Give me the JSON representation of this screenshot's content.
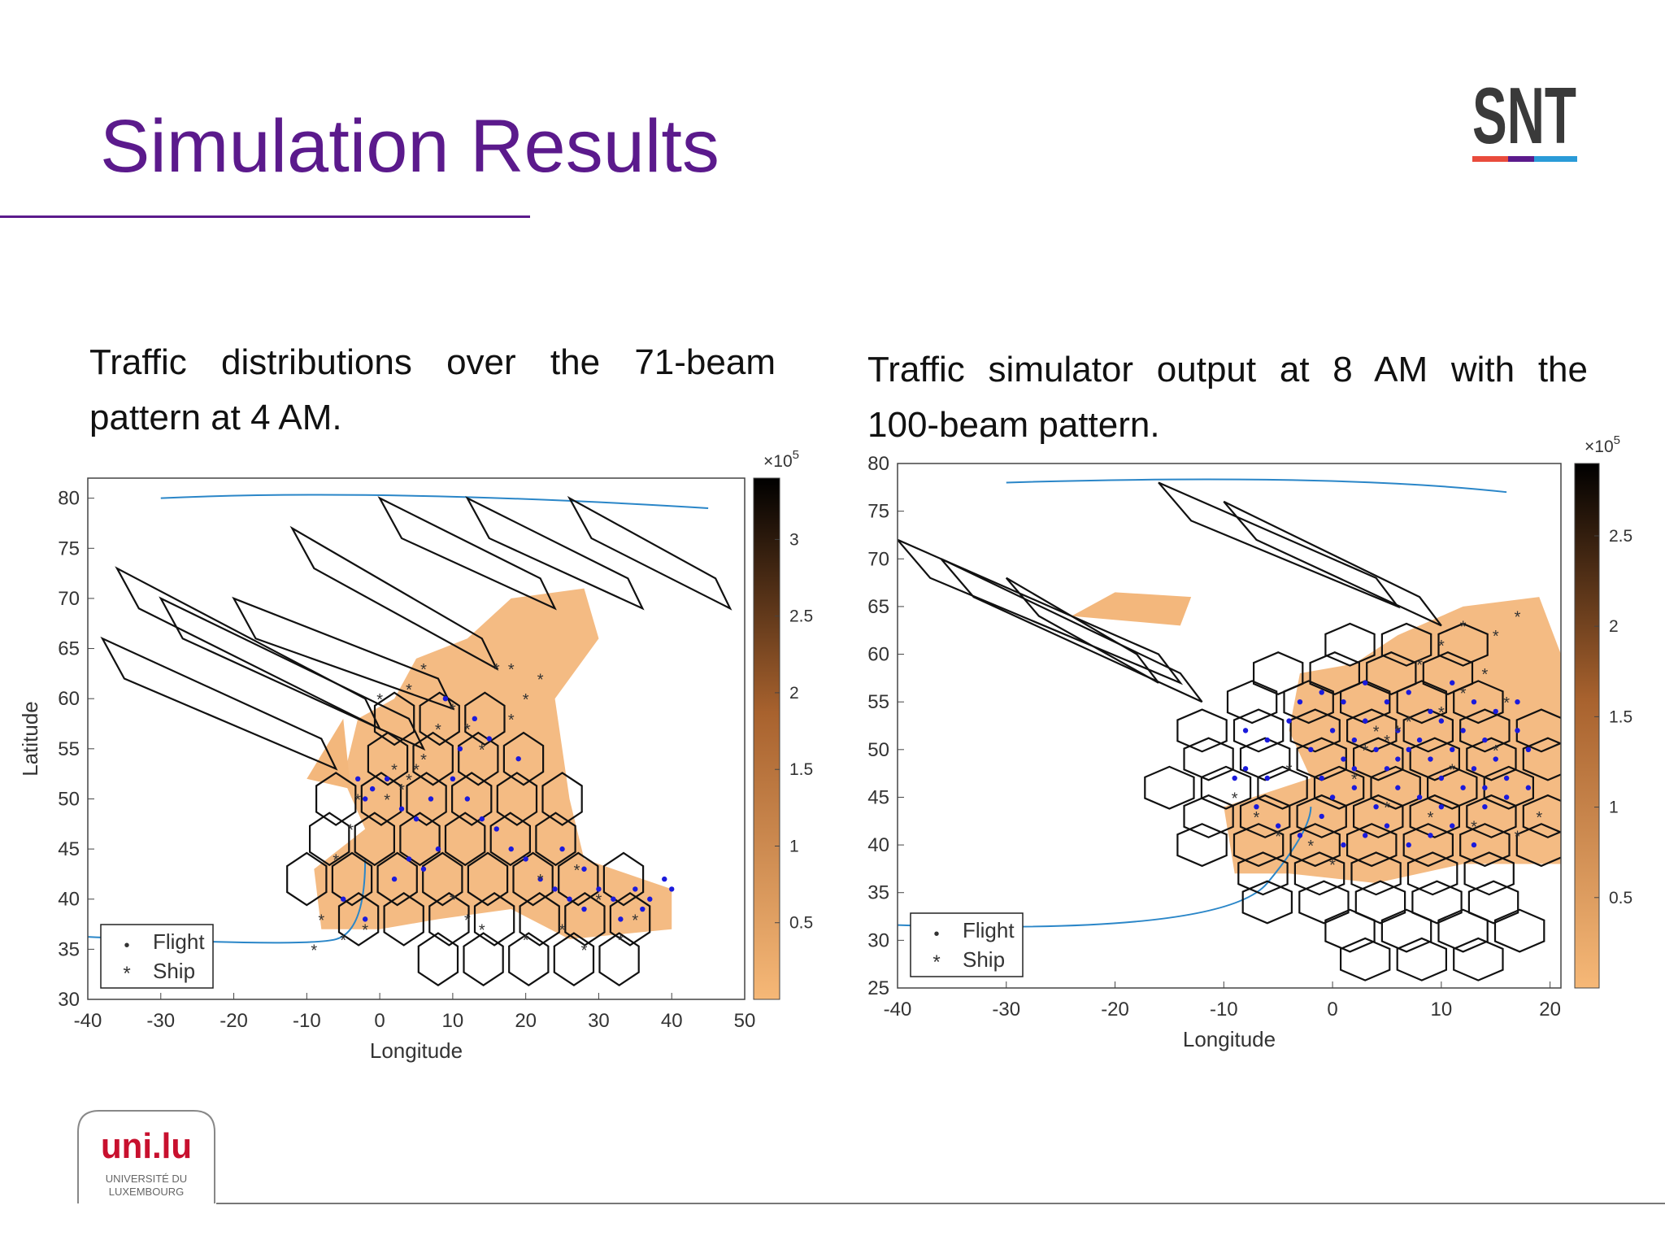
{
  "slide": {
    "title": "Simulation Results",
    "accent_color": "#5b1a8c"
  },
  "logos": {
    "snt": {
      "text": "SNT",
      "bar_colors": [
        "#e94b3c",
        "#5b1a8c",
        "#2a9bd8"
      ]
    },
    "uni": {
      "wordmark": "uni.lu",
      "line1": "UNIVERSITÉ DU",
      "line2": "LUXEMBOURG",
      "color": "#c8102e"
    }
  },
  "captions": {
    "left": {
      "line1": "Traffic distributions over the 71-beam",
      "line2": "pattern at 4 AM."
    },
    "right": {
      "line1": "Traffic simulator output at 8 AM with the",
      "line2": "100-beam pattern."
    }
  },
  "chart_data": [
    {
      "type": "scatter",
      "description_visible": "map with beam cells, traffic heat color and flight/ship markers",
      "xlabel": "Longitude",
      "ylabel": "Latitude",
      "xlim": [
        -40,
        50
      ],
      "ylim": [
        30,
        82
      ],
      "xticks": [
        -40,
        -30,
        -20,
        -10,
        0,
        10,
        20,
        30,
        40,
        50
      ],
      "yticks": [
        30,
        35,
        40,
        45,
        50,
        55,
        60,
        65,
        70,
        75,
        80
      ],
      "colorbar": {
        "ticks": [
          "0.5",
          "1",
          "1.5",
          "2",
          "2.5",
          "3"
        ],
        "range": [
          0,
          3.4
        ],
        "exponent": "×10^5",
        "colors": [
          "#f6b877",
          "#000000"
        ]
      },
      "legend": {
        "position": "bottom-left",
        "entries": [
          {
            "name": "Flight",
            "marker": "•",
            "color": "#1a1adc"
          },
          {
            "name": "Ship",
            "marker": "*",
            "color": "#e8231f"
          }
        ]
      },
      "series": [
        {
          "name": "Flight",
          "color": "#1a1adc",
          "points": [
            [
              -3,
              52
            ],
            [
              -1,
              51
            ],
            [
              1,
              52
            ],
            [
              -2,
              50
            ],
            [
              3,
              49
            ],
            [
              5,
              48
            ],
            [
              7,
              50
            ],
            [
              10,
              52
            ],
            [
              12,
              50
            ],
            [
              14,
              48
            ],
            [
              16,
              47
            ],
            [
              18,
              45
            ],
            [
              20,
              44
            ],
            [
              22,
              42
            ],
            [
              24,
              41
            ],
            [
              26,
              40
            ],
            [
              28,
              39
            ],
            [
              30,
              41
            ],
            [
              32,
              40
            ],
            [
              35,
              41
            ],
            [
              37,
              40
            ],
            [
              39,
              42
            ],
            [
              40,
              41
            ],
            [
              8,
              45
            ],
            [
              6,
              43
            ],
            [
              4,
              44
            ],
            [
              11,
              55
            ],
            [
              15,
              56
            ],
            [
              19,
              54
            ],
            [
              13,
              58
            ],
            [
              9,
              60
            ],
            [
              -5,
              40
            ],
            [
              -2,
              38
            ],
            [
              2,
              42
            ],
            [
              25,
              45
            ],
            [
              28,
              43
            ],
            [
              33,
              38
            ],
            [
              36,
              39
            ]
          ]
        },
        {
          "name": "Ship",
          "color": "#e8231f",
          "points": [
            [
              5,
              53
            ],
            [
              4,
              52
            ],
            [
              6,
              54
            ],
            [
              3,
              51
            ],
            [
              2,
              53
            ],
            [
              8,
              57
            ],
            [
              10,
              59
            ],
            [
              12,
              57
            ],
            [
              14,
              55
            ],
            [
              18,
              58
            ],
            [
              20,
              60
            ],
            [
              22,
              62
            ],
            [
              4,
              61
            ],
            [
              6,
              63
            ],
            [
              0,
              60
            ],
            [
              -4,
              47
            ],
            [
              -6,
              44
            ],
            [
              -8,
              38
            ],
            [
              -5,
              36
            ],
            [
              -9,
              35
            ],
            [
              -2,
              37
            ],
            [
              10,
              40
            ],
            [
              12,
              38
            ],
            [
              14,
              37
            ],
            [
              20,
              36
            ],
            [
              25,
              37
            ],
            [
              28,
              35
            ],
            [
              30,
              40
            ],
            [
              33,
              36
            ],
            [
              35,
              38
            ],
            [
              27,
              43
            ],
            [
              22,
              42
            ],
            [
              -3,
              50
            ],
            [
              1,
              50
            ],
            [
              16,
              63
            ],
            [
              18,
              63
            ]
          ]
        }
      ]
    },
    {
      "type": "scatter",
      "description_visible": "map with beam cells, traffic heat color and flight/ship markers",
      "xlabel": "Longitude",
      "ylabel": "",
      "xlim": [
        -40,
        21
      ],
      "ylim": [
        25,
        80
      ],
      "xticks": [
        -40,
        -30,
        -20,
        -10,
        0,
        10,
        20
      ],
      "yticks": [
        25,
        30,
        35,
        40,
        45,
        50,
        55,
        60,
        65,
        70,
        75,
        80
      ],
      "colorbar": {
        "ticks": [
          "0.5",
          "1",
          "1.5",
          "2",
          "2.5"
        ],
        "range": [
          0,
          2.9
        ],
        "exponent": "×10^5",
        "colors": [
          "#f6b877",
          "#000000"
        ]
      },
      "legend": {
        "position": "bottom-left",
        "entries": [
          {
            "name": "Flight",
            "marker": "•",
            "color": "#1a1adc"
          },
          {
            "name": "Ship",
            "marker": "*",
            "color": "#e8231f"
          }
        ]
      },
      "series": [
        {
          "name": "Flight",
          "color": "#1a1adc",
          "points": [
            [
              -8,
              52
            ],
            [
              -6,
              51
            ],
            [
              -4,
              53
            ],
            [
              -2,
              50
            ],
            [
              0,
              52
            ],
            [
              1,
              49
            ],
            [
              2,
              51
            ],
            [
              3,
              53
            ],
            [
              4,
              50
            ],
            [
              5,
              48
            ],
            [
              6,
              52
            ],
            [
              7,
              50
            ],
            [
              8,
              51
            ],
            [
              9,
              49
            ],
            [
              10,
              53
            ],
            [
              11,
              50
            ],
            [
              12,
              52
            ],
            [
              13,
              48
            ],
            [
              14,
              51
            ],
            [
              15,
              49
            ],
            [
              16,
              47
            ],
            [
              17,
              52
            ],
            [
              18,
              50
            ],
            [
              -1,
              47
            ],
            [
              0,
              45
            ],
            [
              2,
              46
            ],
            [
              4,
              44
            ],
            [
              6,
              46
            ],
            [
              8,
              45
            ],
            [
              10,
              44
            ],
            [
              12,
              46
            ],
            [
              14,
              44
            ],
            [
              -7,
              44
            ],
            [
              -5,
              42
            ],
            [
              -3,
              41
            ],
            [
              -1,
              43
            ],
            [
              1,
              40
            ],
            [
              3,
              41
            ],
            [
              5,
              42
            ],
            [
              7,
              40
            ],
            [
              9,
              41
            ],
            [
              11,
              42
            ],
            [
              13,
              40
            ],
            [
              -3,
              55
            ],
            [
              -1,
              56
            ],
            [
              1,
              55
            ],
            [
              3,
              57
            ],
            [
              5,
              55
            ],
            [
              7,
              56
            ],
            [
              9,
              54
            ],
            [
              11,
              57
            ],
            [
              13,
              55
            ],
            [
              15,
              54
            ],
            [
              17,
              55
            ],
            [
              -9,
              47
            ],
            [
              -8,
              48
            ],
            [
              -6,
              47
            ],
            [
              16,
              45
            ],
            [
              18,
              46
            ],
            [
              2,
              48
            ],
            [
              6,
              49
            ],
            [
              10,
              47
            ],
            [
              14,
              46
            ]
          ]
        },
        {
          "name": "Ship",
          "color": "#e8231f",
          "points": [
            [
              4,
              52
            ],
            [
              5,
              51
            ],
            [
              6,
              52
            ],
            [
              3,
              50
            ],
            [
              7,
              53
            ],
            [
              10,
              54
            ],
            [
              12,
              56
            ],
            [
              14,
              58
            ],
            [
              8,
              59
            ],
            [
              10,
              61
            ],
            [
              12,
              63
            ],
            [
              15,
              62
            ],
            [
              17,
              64
            ],
            [
              16,
              55
            ],
            [
              -9,
              45
            ],
            [
              -7,
              43
            ],
            [
              -5,
              41
            ],
            [
              -2,
              40
            ],
            [
              0,
              38
            ],
            [
              5,
              44
            ],
            [
              9,
              43
            ],
            [
              13,
              42
            ],
            [
              17,
              41
            ],
            [
              19,
              43
            ],
            [
              2,
              47
            ],
            [
              -4,
              48
            ],
            [
              11,
              48
            ],
            [
              15,
              50
            ]
          ]
        }
      ]
    }
  ]
}
